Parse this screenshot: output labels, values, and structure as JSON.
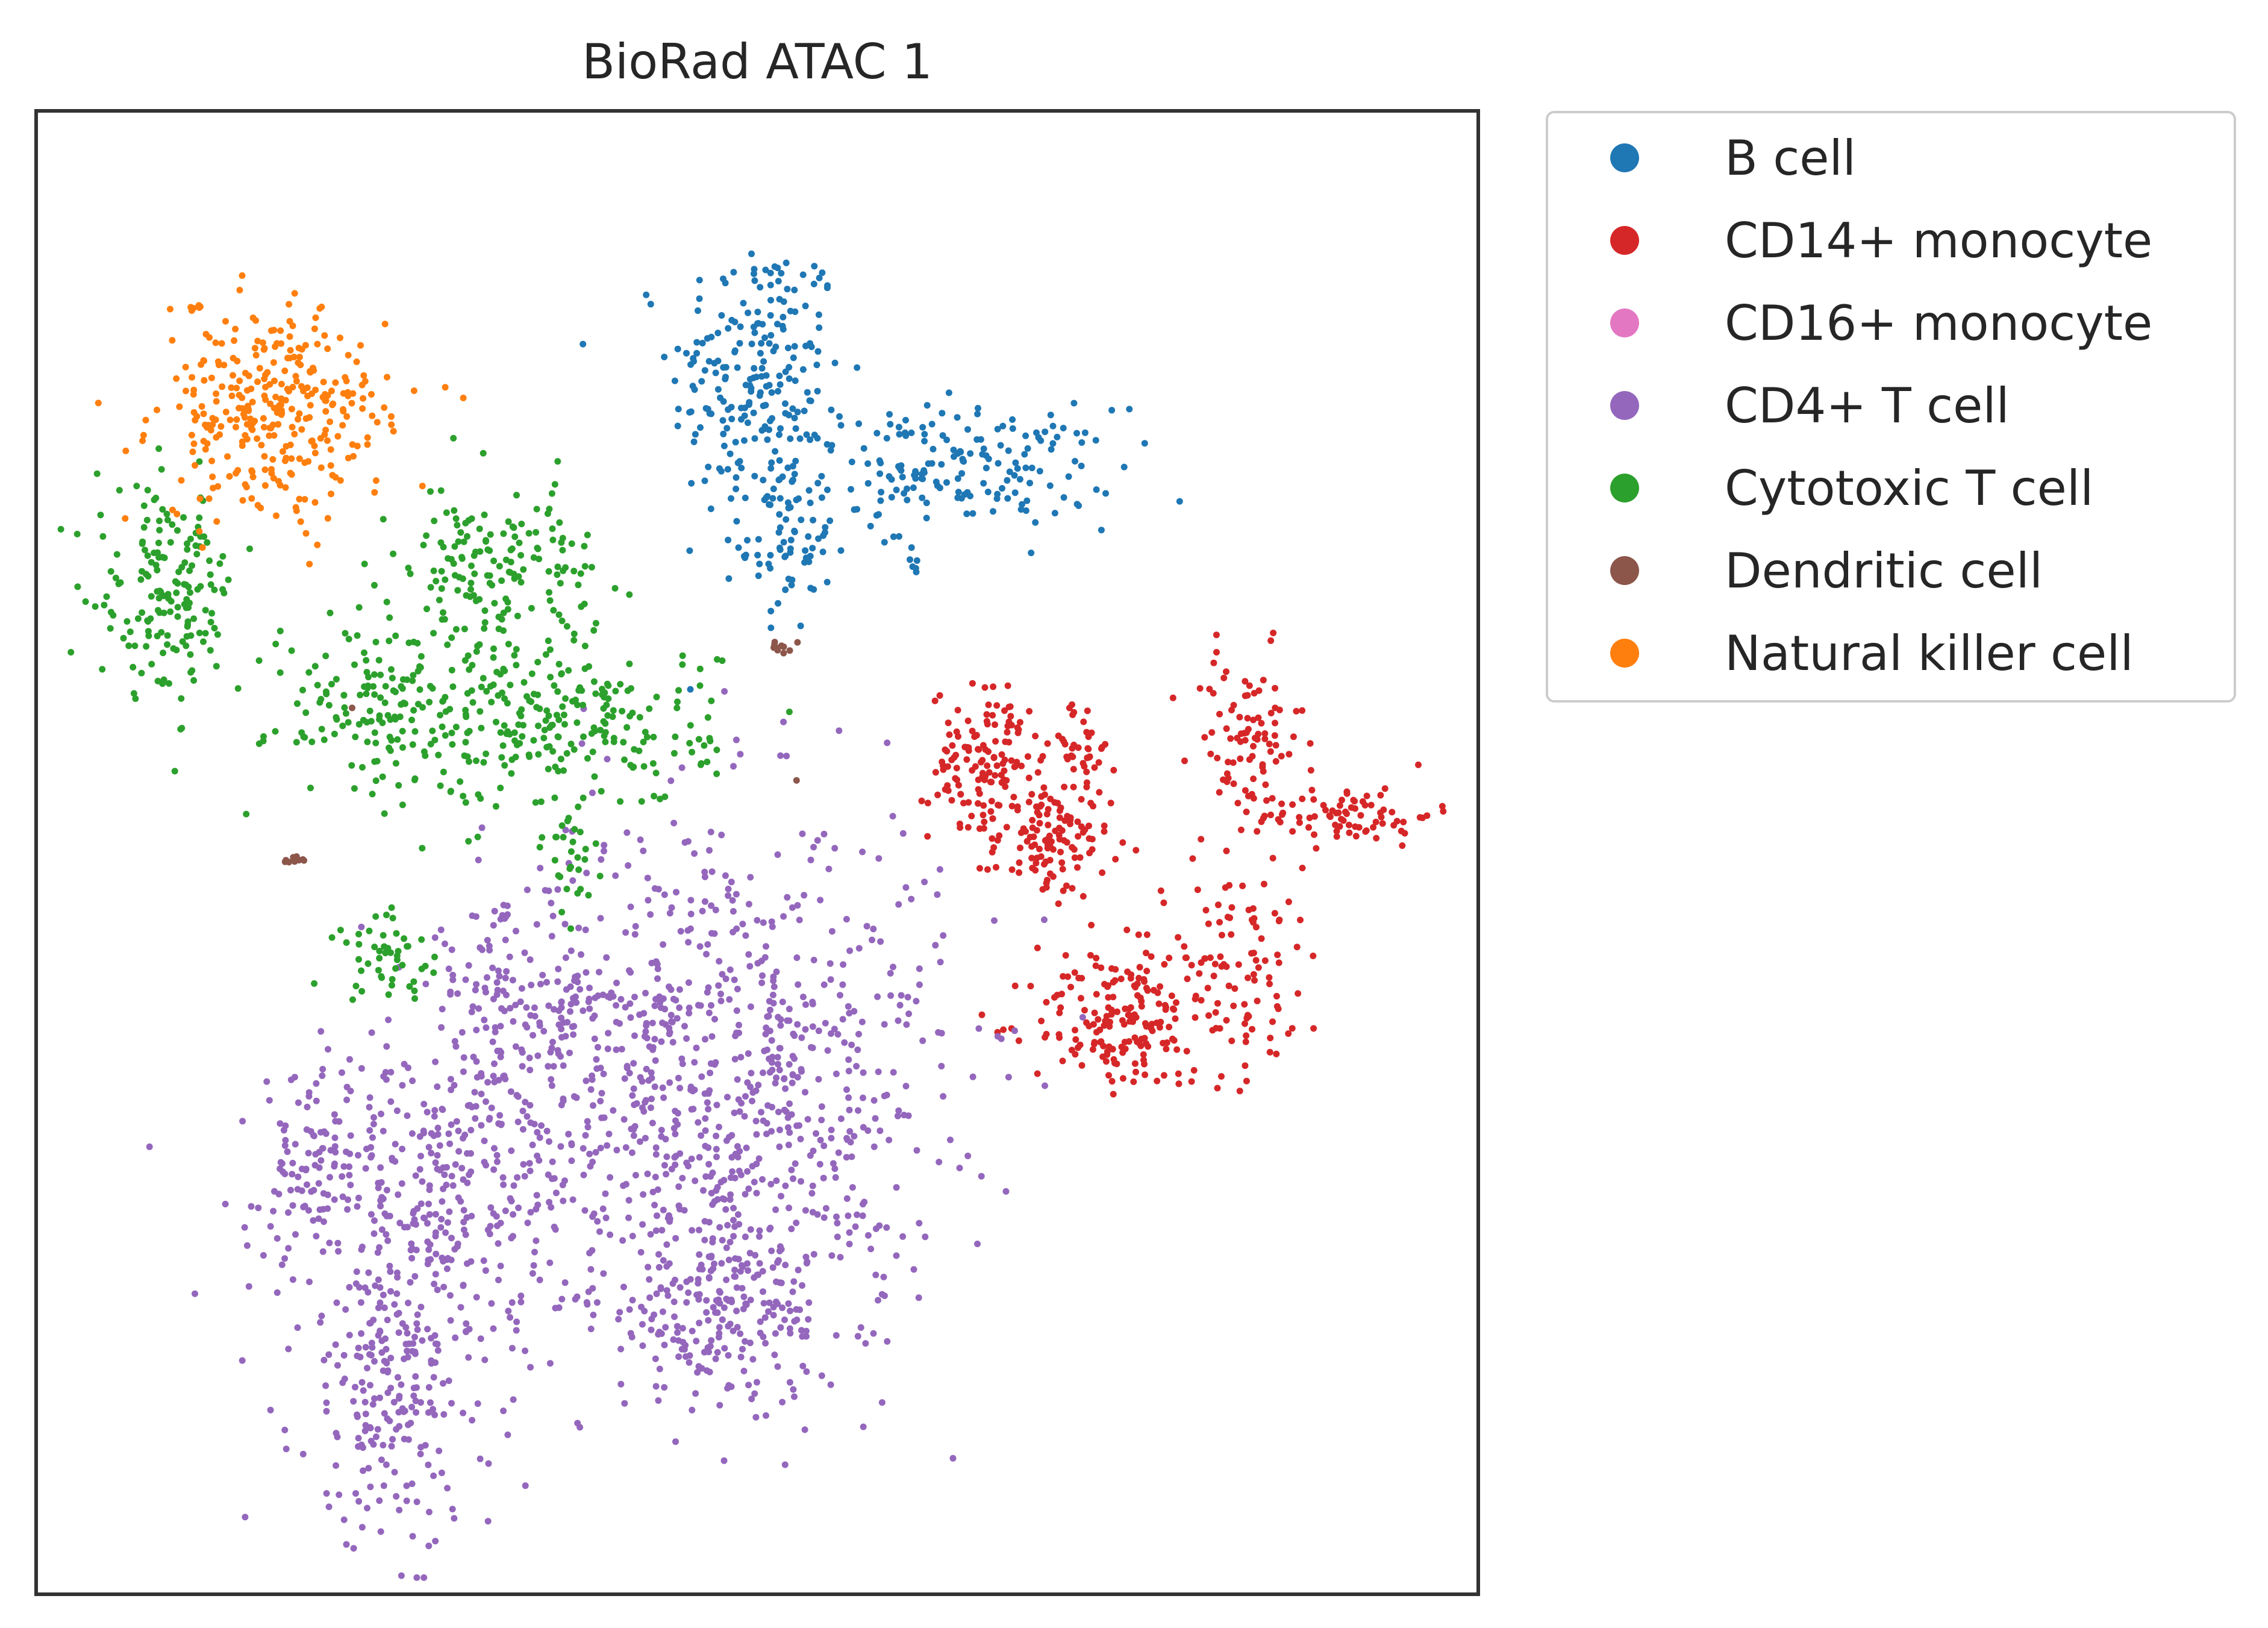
{
  "chart_data": {
    "type": "scatter",
    "title": "BioRad ATAC 1",
    "xlabel": "",
    "ylabel": "",
    "xlim": [
      0,
      100
    ],
    "ylim": [
      0,
      100
    ],
    "grid": false,
    "ticks": false,
    "legend_placement": "outside-top-right",
    "series": [
      {
        "name": "B cell",
        "color": "#1f77b4",
        "clusters": [
          {
            "cx": 50,
            "cy": 82,
            "sx": 3.0,
            "sy": 5.0,
            "n": 220
          },
          {
            "cx": 52,
            "cy": 71,
            "sx": 1.6,
            "sy": 3.0,
            "n": 70
          },
          {
            "cx": 64,
            "cy": 76,
            "sx": 5.5,
            "sy": 2.0,
            "n": 180
          },
          {
            "cx": 61,
            "cy": 69.5,
            "sx": 0.4,
            "sy": 0.6,
            "n": 6
          }
        ]
      },
      {
        "name": "CD14+ monocyte",
        "color": "#d62728",
        "clusters": [
          {
            "cx": 66,
            "cy": 56,
            "sx": 2.0,
            "sy": 2.6,
            "n": 140
          },
          {
            "cx": 70.5,
            "cy": 50.5,
            "sx": 2.0,
            "sy": 1.8,
            "n": 110
          },
          {
            "cx": 72.5,
            "cy": 57,
            "sx": 1.2,
            "sy": 1.6,
            "n": 40
          },
          {
            "cx": 84,
            "cy": 57.5,
            "sx": 2.0,
            "sy": 3.0,
            "n": 90
          },
          {
            "cx": 91,
            "cy": 52.5,
            "sx": 3.0,
            "sy": 1.0,
            "n": 80
          },
          {
            "cx": 75,
            "cy": 38.5,
            "sx": 3.0,
            "sy": 2.2,
            "n": 150
          },
          {
            "cx": 82.5,
            "cy": 42,
            "sx": 3.8,
            "sy": 3.5,
            "n": 130
          }
        ]
      },
      {
        "name": "CD16+ monocyte",
        "color": "#e377c2",
        "clusters": []
      },
      {
        "name": "CD4+ T cell",
        "color": "#9467bd",
        "clusters": [
          {
            "cx": 47,
            "cy": 35,
            "sx": 8.0,
            "sy": 9.0,
            "n": 850
          },
          {
            "cx": 27,
            "cy": 28,
            "sx": 6.0,
            "sy": 4.5,
            "n": 300
          },
          {
            "cx": 25,
            "cy": 14.5,
            "sx": 3.5,
            "sy": 5.5,
            "n": 260
          },
          {
            "cx": 48,
            "cy": 19.5,
            "sx": 4.5,
            "sy": 3.5,
            "n": 230
          },
          {
            "cx": 33,
            "cy": 40,
            "sx": 3.5,
            "sy": 3.0,
            "n": 120
          },
          {
            "cx": 19,
            "cy": 29,
            "sx": 1.8,
            "sy": 3.0,
            "n": 60
          }
        ]
      },
      {
        "name": "Cytotoxic T cell",
        "color": "#2ca02c",
        "clusters": [
          {
            "cx": 9,
            "cy": 67.5,
            "sx": 2.5,
            "sy": 3.5,
            "n": 170
          },
          {
            "cx": 32,
            "cy": 69,
            "sx": 3.5,
            "sy": 3.0,
            "n": 170
          },
          {
            "cx": 24,
            "cy": 60,
            "sx": 4.0,
            "sy": 3.0,
            "n": 160
          },
          {
            "cx": 37,
            "cy": 58.5,
            "sx": 5.0,
            "sy": 2.8,
            "n": 220
          },
          {
            "cx": 24.5,
            "cy": 43,
            "sx": 2.0,
            "sy": 1.5,
            "n": 50
          },
          {
            "cx": 37,
            "cy": 49.5,
            "sx": 1.0,
            "sy": 2.0,
            "n": 30
          }
        ]
      },
      {
        "name": "Dendritic cell",
        "color": "#8c564b",
        "clusters": [
          {
            "cx": 51.8,
            "cy": 63.8,
            "sx": 0.5,
            "sy": 0.3,
            "n": 10
          },
          {
            "cx": 17.8,
            "cy": 49.5,
            "sx": 0.5,
            "sy": 0.15,
            "n": 9
          },
          {
            "cx": 52.8,
            "cy": 54.8,
            "sx": 0.1,
            "sy": 0.1,
            "n": 1
          },
          {
            "cx": 21.9,
            "cy": 59.5,
            "sx": 0.1,
            "sy": 0.1,
            "n": 1
          }
        ]
      },
      {
        "name": "Natural killer cell",
        "color": "#ff7f0e",
        "clusters": [
          {
            "cx": 16.5,
            "cy": 79.5,
            "sx": 4.0,
            "sy": 3.5,
            "n": 320
          },
          {
            "cx": 11,
            "cy": 87,
            "sx": 0.4,
            "sy": 0.3,
            "n": 6
          }
        ]
      }
    ]
  }
}
